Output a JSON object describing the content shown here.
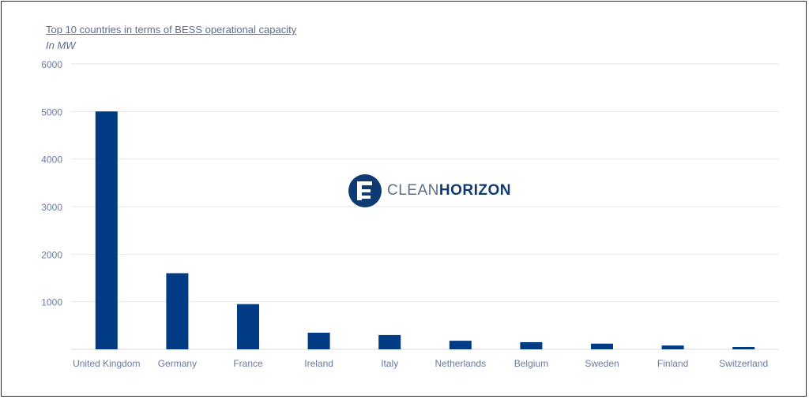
{
  "chart_data": {
    "type": "bar",
    "title": "Top 10 countries in terms of BESS operational capacity",
    "subtitle": "In MW",
    "categories": [
      "United Kingdom",
      "Germany",
      "France",
      "Ireland",
      "Italy",
      "Netherlands",
      "Belgium",
      "Sweden",
      "Finland",
      "Switzerland"
    ],
    "values": [
      5000,
      1600,
      950,
      350,
      300,
      180,
      150,
      120,
      80,
      50
    ],
    "y_ticks": [
      "6000",
      "5000",
      "4000",
      "3000",
      "2000",
      "1000"
    ],
    "y_tick_values": [
      6000,
      5000,
      4000,
      3000,
      2000,
      1000
    ],
    "ylim": [
      0,
      6000
    ],
    "xlabel": "",
    "ylabel": "",
    "grid": true,
    "bar_color": "#003b84",
    "grid_color": "#e6e6e6",
    "label_color": "#6a7aa0"
  },
  "logo": {
    "brand_light": "CLEAN",
    "brand_bold": "HORIZON",
    "icon": "clean-horizon-logo-icon",
    "color": "#0e3a73"
  }
}
